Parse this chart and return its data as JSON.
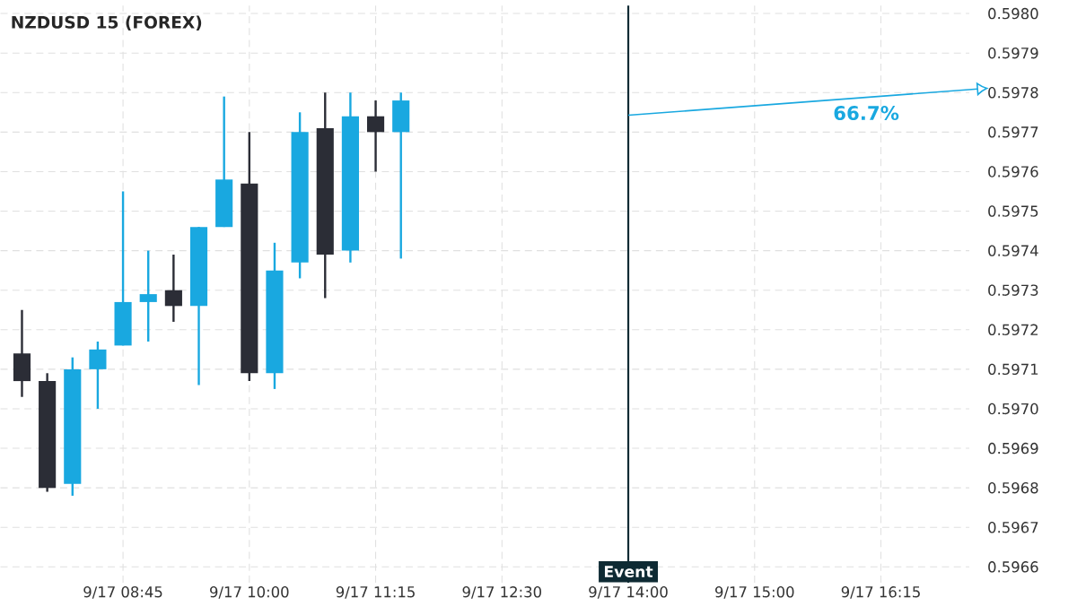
{
  "chart_data": {
    "type": "candlestick",
    "title": "NZDUSD 15 (FOREX)",
    "categories": [
      null,
      null,
      null,
      null,
      "9/17 08:45",
      null,
      null,
      null,
      null,
      "9/17 10:00",
      null,
      null,
      null,
      null,
      "9/17 11:15",
      null,
      null,
      null,
      null,
      "9/17 12:30",
      null,
      null,
      null,
      null,
      "9/17 14:00",
      null,
      null,
      null,
      null,
      "9/17 15:00",
      null,
      null,
      null,
      null,
      "9/17 16:15",
      null,
      null,
      null
    ],
    "ohlc": [
      [
        0.59714,
        0.59725,
        0.59703,
        0.59707
      ],
      [
        0.59707,
        0.59709,
        0.59679,
        0.5968
      ],
      [
        0.59681,
        0.59713,
        0.59678,
        0.5971
      ],
      [
        0.5971,
        0.59717,
        0.597,
        0.59715
      ],
      [
        0.59716,
        0.59755,
        0.59716,
        0.59727
      ],
      [
        0.59727,
        0.5974,
        0.59717,
        0.59729
      ],
      [
        0.5973,
        0.59739,
        0.59722,
        0.59726
      ],
      [
        0.59726,
        0.59746,
        0.59706,
        0.59746
      ],
      [
        0.59746,
        0.59779,
        0.59746,
        0.59758
      ],
      [
        0.59757,
        0.5977,
        0.59707,
        0.59709
      ],
      [
        0.59709,
        0.59742,
        0.59705,
        0.59735
      ],
      [
        0.59737,
        0.59775,
        0.59733,
        0.5977
      ],
      [
        0.59771,
        0.5978,
        0.59728,
        0.59739
      ],
      [
        0.5974,
        0.5978,
        0.59737,
        0.59774
      ],
      [
        0.59774,
        0.59778,
        0.5976,
        0.5977
      ],
      [
        0.5977,
        0.5978,
        0.59738,
        0.59778
      ],
      null,
      null,
      null,
      null,
      null,
      null,
      null,
      null,
      null,
      null,
      null,
      null,
      null,
      null,
      null,
      null,
      null,
      null,
      null,
      null,
      null,
      null
    ],
    "colors": [
      "#2b2d36",
      "#2b2d36",
      "#19a8e0",
      "#19a8e0",
      "#19a8e0",
      "#19a8e0",
      "#2b2d36",
      "#19a8e0",
      "#19a8e0",
      "#2b2d36",
      "#19a8e0",
      "#19a8e0",
      "#2b2d36",
      "#19a8e0",
      "#2b2d36",
      "#19a8e0",
      null,
      null,
      null,
      null,
      null,
      null,
      null,
      null,
      null,
      null,
      null,
      null,
      null,
      null,
      null,
      null,
      null,
      null,
      null,
      null,
      null,
      null
    ],
    "ylim": [
      0.59656,
      0.59802
    ],
    "yticks": [
      {
        "value": 0.5966,
        "label": "0.5966"
      },
      {
        "value": 0.5967,
        "label": "0.5967"
      },
      {
        "value": 0.5968,
        "label": "0.5968"
      },
      {
        "value": 0.5969,
        "label": "0.5969"
      },
      {
        "value": 0.597,
        "label": "0.5970"
      },
      {
        "value": 0.5971,
        "label": "0.5971"
      },
      {
        "value": 0.5972,
        "label": "0.5972"
      },
      {
        "value": 0.5973,
        "label": "0.5973"
      },
      {
        "value": 0.5974,
        "label": "0.5974"
      },
      {
        "value": 0.5975,
        "label": "0.5975"
      },
      {
        "value": 0.5976,
        "label": "0.5976"
      },
      {
        "value": 0.5977,
        "label": "0.5977"
      },
      {
        "value": 0.5978,
        "label": "0.5978"
      },
      {
        "value": 0.5979,
        "label": "0.5979"
      },
      {
        "value": 0.598,
        "label": "0.5980"
      }
    ],
    "grid": true,
    "ref_lines": [
      {
        "axis": "x",
        "value": "9/17 14:00",
        "label": "Event",
        "color": "#0e2a33"
      }
    ],
    "annotations": [
      "66.7%"
    ]
  }
}
